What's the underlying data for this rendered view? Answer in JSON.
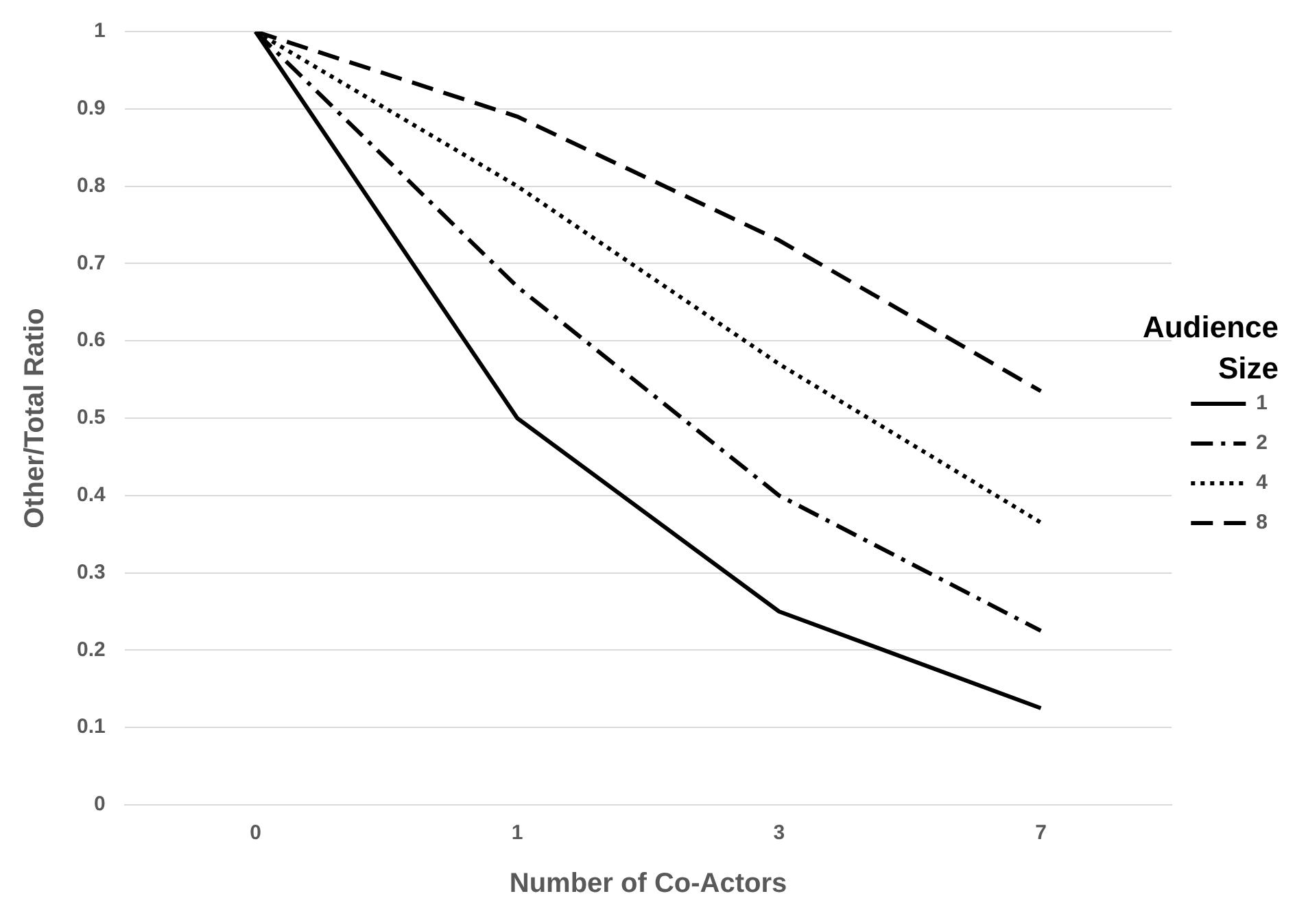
{
  "chart_data": {
    "type": "line",
    "xlabel": "Number of Co-Actors",
    "ylabel": "Other/Total Ratio",
    "legend_title": "Audience Size",
    "categories": [
      "0",
      "1",
      "3",
      "7"
    ],
    "series": [
      {
        "name": "1",
        "color": "#000000",
        "line_style": "solid",
        "values": [
          1,
          0.5,
          0.25,
          0.125
        ]
      },
      {
        "name": "2",
        "color": "#000000",
        "line_style": "dashdot",
        "values": [
          1,
          0.67,
          0.4,
          0.225
        ]
      },
      {
        "name": "4",
        "color": "#000000",
        "line_style": "dotted",
        "values": [
          1,
          0.8,
          0.57,
          0.365
        ]
      },
      {
        "name": "8",
        "color": "#000000",
        "line_style": "dashed",
        "values": [
          1,
          0.89,
          0.73,
          0.535
        ]
      }
    ],
    "ylim": [
      0,
      1
    ],
    "yticks": [
      0,
      0.1,
      0.2,
      0.3,
      0.4,
      0.5,
      0.6,
      0.7,
      0.8,
      0.9,
      1
    ],
    "grid": "y",
    "legend": "right",
    "marker": "none"
  }
}
